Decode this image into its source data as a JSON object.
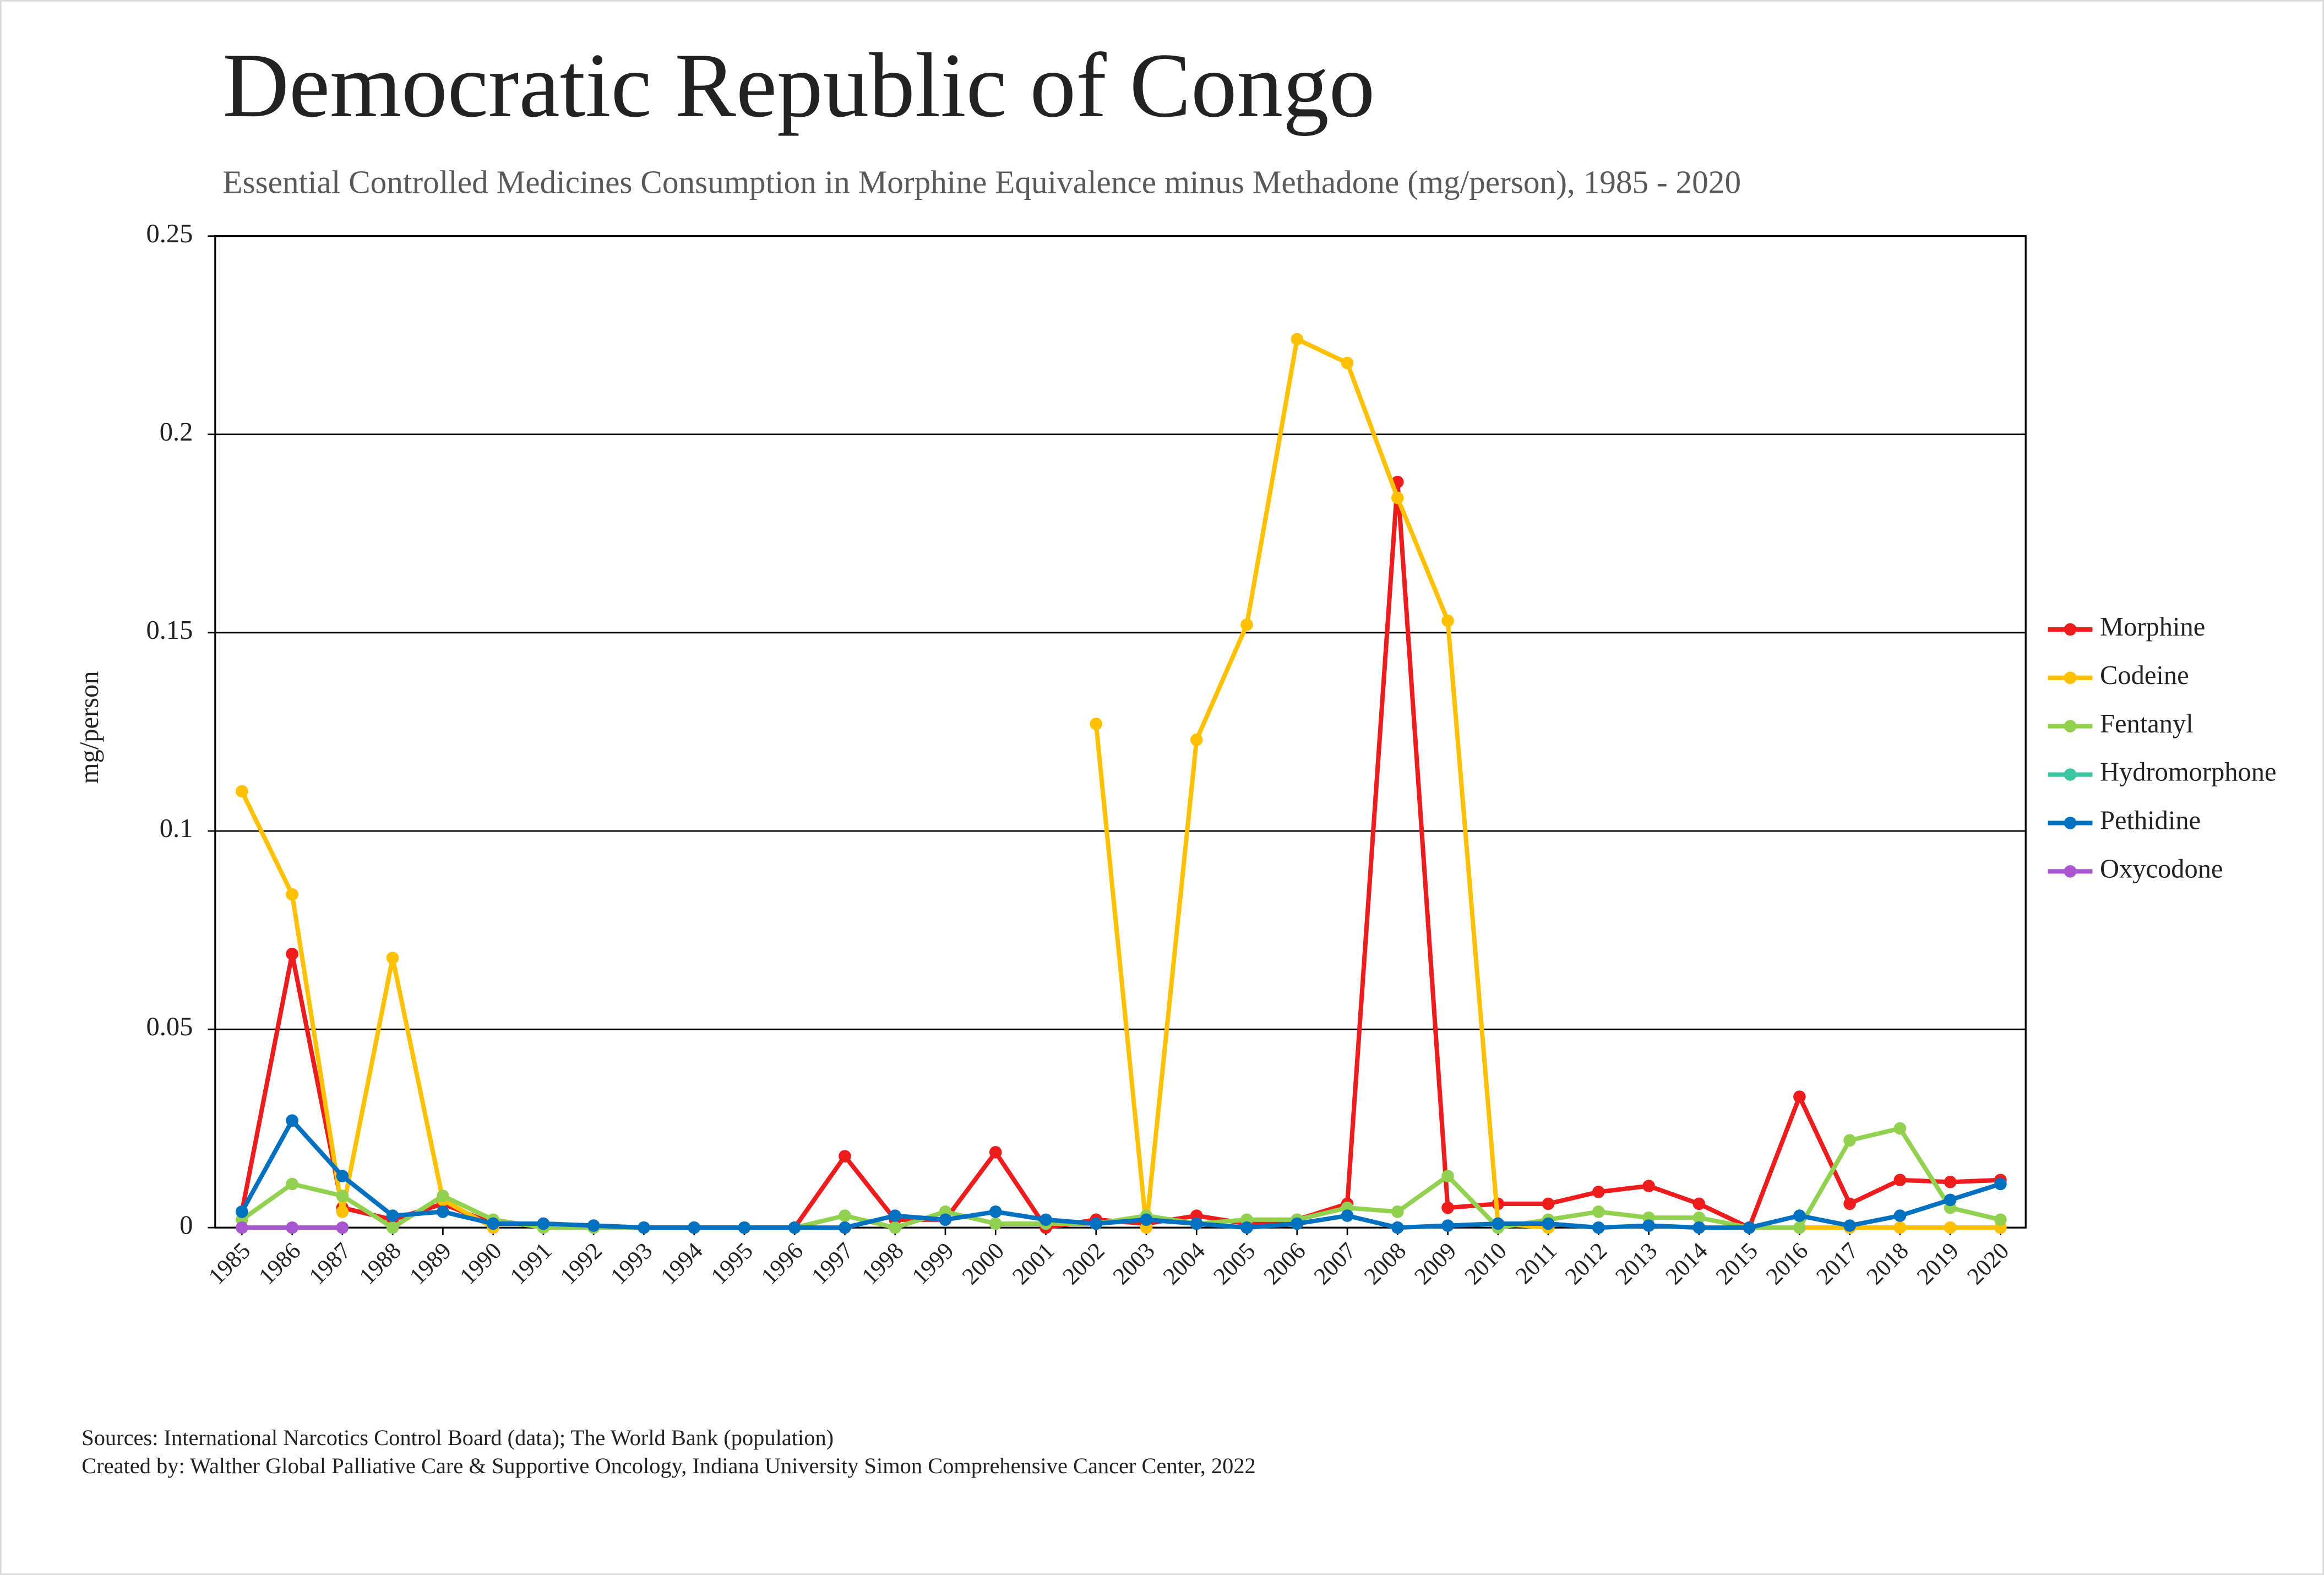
{
  "chart_data": {
    "type": "line",
    "title": "Democratic Republic of Congo",
    "subtitle": "Essential Controlled Medicines Consumption in Morphine Equivalence minus Methadone (mg/person), 1985 - 2020",
    "y_label": "mg/person",
    "categories": [
      "1985",
      "1986",
      "1987",
      "1988",
      "1989",
      "1990",
      "1991",
      "1992",
      "1993",
      "1994",
      "1995",
      "1996",
      "1997",
      "1998",
      "1999",
      "2000",
      "2001",
      "2002",
      "2003",
      "2004",
      "2005",
      "2006",
      "2007",
      "2008",
      "2009",
      "2010",
      "2011",
      "2012",
      "2013",
      "2014",
      "2015",
      "2016",
      "2017",
      "2018",
      "2019",
      "2020"
    ],
    "ylim": [
      0,
      0.25
    ],
    "yticks": [
      0,
      0.05,
      0.1,
      0.15,
      0.2,
      0.25
    ],
    "grid": true,
    "legend": "right",
    "series": [
      {
        "name": "Morphine",
        "color": "#ee1c1c",
        "values": [
          0.004,
          0.069,
          0.005,
          0.002,
          0.006,
          0.001,
          0.001,
          0.0005,
          0,
          0,
          0,
          0,
          0.018,
          0.002,
          0.002,
          0.019,
          0,
          0.002,
          0.001,
          0.003,
          0.001,
          0.002,
          0.006,
          0.188,
          0.005,
          0.006,
          0.006,
          0.009,
          0.0105,
          0.006,
          0,
          0.033,
          0.006,
          0.012,
          0.0115,
          0.012
        ]
      },
      {
        "name": "Codeine",
        "color": "#ffc000",
        "values": [
          0.11,
          0.084,
          0.004,
          0.068,
          0.007,
          0,
          null,
          null,
          null,
          null,
          null,
          null,
          null,
          null,
          null,
          null,
          null,
          0.127,
          0,
          0.123,
          0.152,
          0.224,
          0.218,
          0.184,
          0.153,
          0.001,
          0,
          null,
          null,
          null,
          null,
          0,
          0,
          0,
          0,
          0
        ]
      },
      {
        "name": "Fentanyl",
        "color": "#92d050",
        "values": [
          0.002,
          0.011,
          0.008,
          0,
          0.008,
          0.002,
          0,
          0,
          0,
          0,
          0,
          0,
          0.003,
          0,
          0.004,
          0.001,
          0.001,
          0.001,
          0.003,
          0.001,
          0.002,
          0.002,
          0.005,
          0.004,
          0.013,
          0,
          0.002,
          0.004,
          0.0025,
          0.0025,
          0,
          0,
          0.022,
          0.025,
          0.005,
          0.002
        ]
      },
      {
        "name": "Hydromorphone",
        "color": "#3cc5a0",
        "values": [
          null,
          null,
          null,
          null,
          null,
          null,
          null,
          null,
          null,
          null,
          null,
          null,
          null,
          null,
          null,
          null,
          null,
          null,
          null,
          null,
          null,
          null,
          null,
          null,
          null,
          null,
          null,
          null,
          null,
          null,
          null,
          null,
          null,
          null,
          null,
          null
        ]
      },
      {
        "name": "Pethidine",
        "color": "#0070c0",
        "values": [
          0.004,
          0.027,
          0.013,
          0.003,
          0.004,
          0.001,
          0.001,
          0.0005,
          0,
          0,
          0,
          0,
          0,
          0.003,
          0.002,
          0.004,
          0.002,
          0.001,
          0.002,
          0.001,
          0,
          0.001,
          0.003,
          0,
          0.0005,
          0.001,
          0.001,
          0,
          0.0005,
          0,
          0,
          0.003,
          0.0005,
          0.003,
          0.007,
          0.011
        ]
      },
      {
        "name": "Oxycodone",
        "color": "#a855d0",
        "values": [
          0,
          0,
          0,
          null,
          null,
          null,
          null,
          null,
          null,
          null,
          null,
          null,
          null,
          null,
          null,
          null,
          null,
          null,
          null,
          null,
          null,
          null,
          null,
          null,
          null,
          null,
          null,
          null,
          null,
          null,
          null,
          null,
          null,
          null,
          null,
          null
        ]
      }
    ],
    "sources": [
      "Sources: International Narcotics Control Board (data); The World Bank (population)",
      "Created by: Walther Global Palliative Care & Supportive Oncology, Indiana University Simon Comprehensive Cancer Center, 2022"
    ]
  }
}
